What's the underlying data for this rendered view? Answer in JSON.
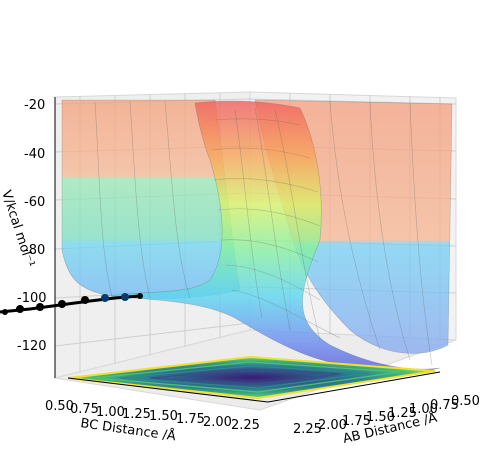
{
  "chart_data": {
    "type": "surface3d",
    "title": "",
    "xlabel": "AB Distance /Å",
    "ylabel": "BC Distance /Å",
    "zlabel": "V/kcal mol⁻¹",
    "x_ticks": [
      "0.50",
      "0.75",
      "1.00",
      "1.25",
      "1.50",
      "1.75",
      "2.00",
      "2.25"
    ],
    "y_ticks": [
      "0.50",
      "0.75",
      "1.00",
      "1.25",
      "1.50",
      "1.75",
      "2.00",
      "2.25"
    ],
    "z_ticks": [
      "-20",
      "-40",
      "-60",
      "-80",
      "-100",
      "-120"
    ],
    "xlim": [
      0.5,
      2.3
    ],
    "ylim": [
      0.5,
      2.3
    ],
    "zlim": [
      -135,
      -20
    ],
    "surface_colormap": "jet",
    "contour_colormap": "viridis",
    "trajectory_color": "#000000",
    "trajectory_points": [
      {
        "x": 2.3,
        "y": 0.74,
        "z": -103
      },
      {
        "x": 2.2,
        "y": 0.76,
        "z": -102
      },
      {
        "x": 2.0,
        "y": 0.78,
        "z": -101
      },
      {
        "x": 1.8,
        "y": 0.8,
        "z": -100
      },
      {
        "x": 1.6,
        "y": 0.82,
        "z": -99
      },
      {
        "x": 1.4,
        "y": 0.86,
        "z": -98
      },
      {
        "x": 1.2,
        "y": 0.9,
        "z": -97
      }
    ]
  }
}
